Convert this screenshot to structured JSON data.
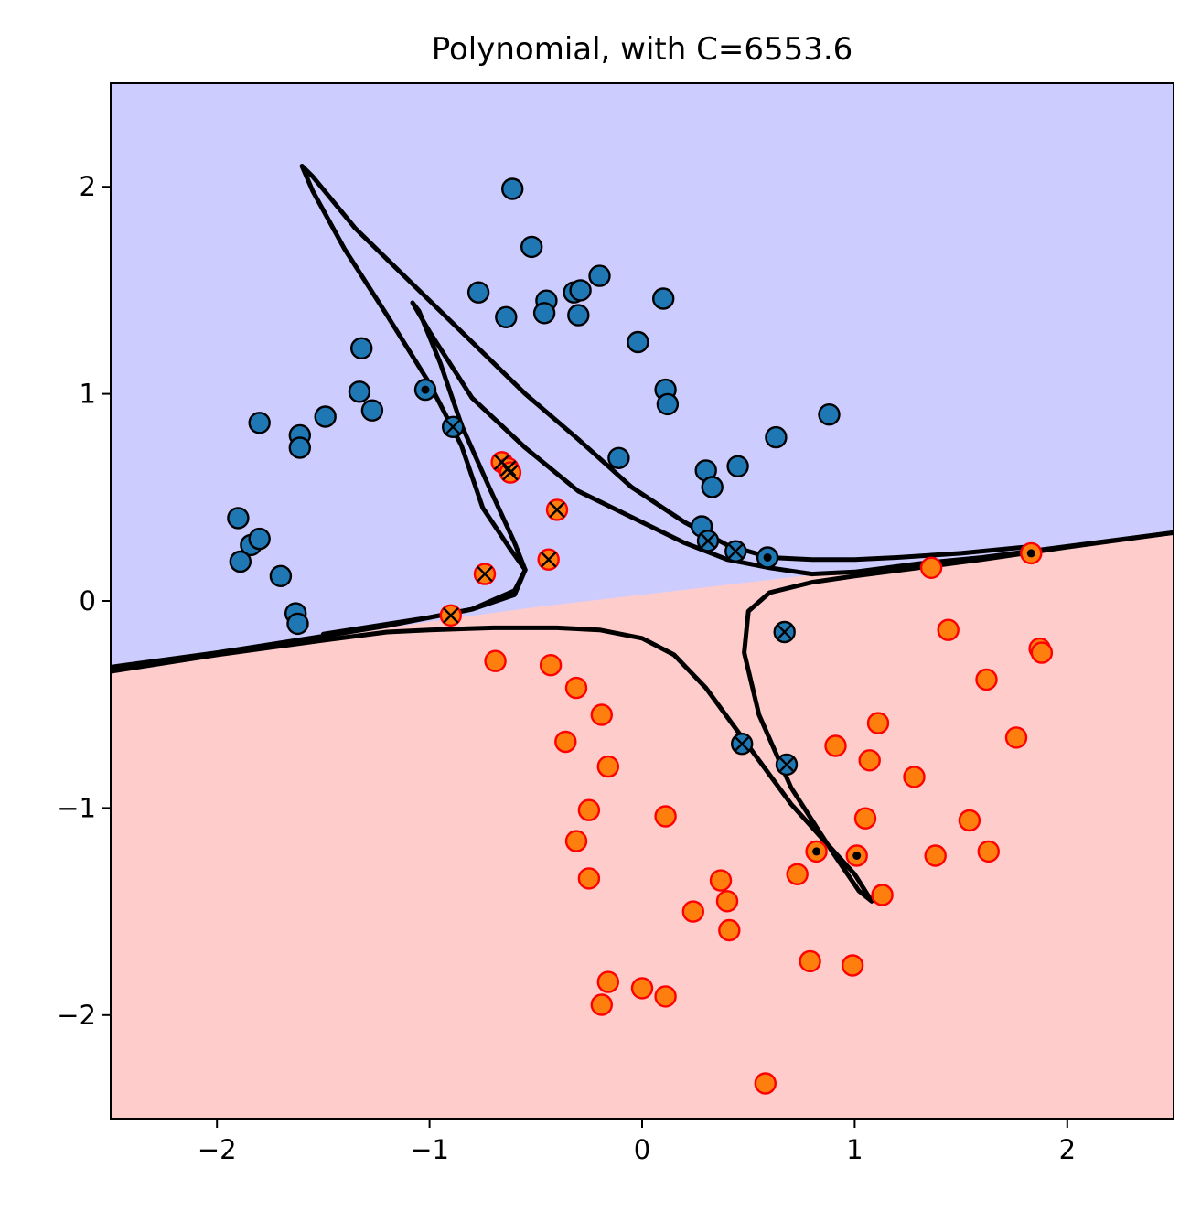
{
  "chart_data": {
    "type": "scatter",
    "title": "Polynomial, with C=6553.6",
    "xlabel": "",
    "ylabel": "",
    "xlim": [
      -2.5,
      2.5
    ],
    "ylim": [
      -2.5,
      2.5
    ],
    "x_ticks": [
      -2,
      -1,
      0,
      1,
      2
    ],
    "y_ticks": [
      -2,
      -1,
      0,
      1,
      2
    ],
    "x_tick_labels": [
      "−2",
      "−1",
      "0",
      "1",
      "2"
    ],
    "y_tick_labels": [
      "−2",
      "−1",
      "0",
      "1",
      "2"
    ],
    "grid": false,
    "legend": "none",
    "regions": [
      {
        "class": "blue",
        "color": "#ccccff"
      },
      {
        "class": "red",
        "color": "#ffcccc"
      }
    ],
    "decision_boundary": {
      "color": "#000000",
      "upper_boundary": [
        [
          -2.5,
          -0.34
        ],
        [
          -2.0,
          -0.26
        ],
        [
          -1.5,
          -0.18
        ],
        [
          -1.0,
          -0.1
        ],
        [
          -0.5,
          -0.03
        ],
        [
          0.0,
          0.03
        ],
        [
          0.5,
          0.09
        ],
        [
          1.0,
          0.15
        ],
        [
          1.5,
          0.21
        ],
        [
          2.0,
          0.27
        ],
        [
          2.5,
          0.32
        ]
      ],
      "contours": [
        [
          [
            -2.5,
            -0.32
          ],
          [
            -2.0,
            -0.25
          ],
          [
            -1.5,
            -0.17
          ],
          [
            -1.2,
            -0.12
          ],
          [
            -0.8,
            -0.04
          ],
          [
            -0.6,
            0.03
          ],
          [
            -0.55,
            0.15
          ],
          [
            -0.6,
            0.28
          ],
          [
            -0.72,
            0.55
          ],
          [
            -0.85,
            0.85
          ],
          [
            -0.95,
            1.15
          ],
          [
            -1.05,
            1.4
          ],
          [
            -1.08,
            1.44
          ],
          [
            -1.0,
            1.3
          ],
          [
            -0.8,
            0.98
          ],
          [
            -0.55,
            0.74
          ],
          [
            -0.3,
            0.53
          ],
          [
            0.0,
            0.38
          ],
          [
            0.2,
            0.28
          ],
          [
            0.4,
            0.2
          ],
          [
            0.6,
            0.16
          ],
          [
            0.8,
            0.13
          ],
          [
            1.0,
            0.14
          ],
          [
            1.3,
            0.18
          ],
          [
            1.6,
            0.21
          ],
          [
            1.9,
            0.25
          ],
          [
            2.2,
            0.29
          ],
          [
            2.5,
            0.33
          ]
        ],
        [
          [
            -2.5,
            -0.34
          ],
          [
            -2.0,
            -0.26
          ],
          [
            -1.5,
            -0.19
          ],
          [
            -1.2,
            -0.15
          ],
          [
            -1.0,
            -0.14
          ],
          [
            -0.7,
            -0.13
          ],
          [
            -0.4,
            -0.13
          ],
          [
            -0.2,
            -0.14
          ],
          [
            0.0,
            -0.18
          ],
          [
            0.15,
            -0.26
          ],
          [
            0.3,
            -0.42
          ],
          [
            0.5,
            -0.7
          ],
          [
            0.7,
            -0.98
          ],
          [
            0.85,
            -1.15
          ],
          [
            1.0,
            -1.32
          ],
          [
            1.08,
            -1.45
          ],
          [
            1.02,
            -1.4
          ],
          [
            0.9,
            -1.22
          ],
          [
            0.7,
            -0.9
          ],
          [
            0.55,
            -0.55
          ],
          [
            0.48,
            -0.25
          ],
          [
            0.5,
            -0.05
          ],
          [
            0.6,
            0.04
          ],
          [
            0.8,
            0.09
          ],
          [
            1.0,
            0.12
          ],
          [
            1.3,
            0.16
          ],
          [
            1.6,
            0.2
          ],
          [
            2.0,
            0.26
          ],
          [
            2.5,
            0.33
          ]
        ],
        [
          [
            -1.6,
            2.1
          ],
          [
            -1.55,
            2.05
          ],
          [
            -1.35,
            1.8
          ],
          [
            -1.1,
            1.55
          ],
          [
            -0.85,
            1.3
          ],
          [
            -0.55,
            1.0
          ],
          [
            -0.3,
            0.78
          ],
          [
            -0.05,
            0.55
          ],
          [
            0.2,
            0.38
          ],
          [
            0.4,
            0.27
          ],
          [
            0.6,
            0.21
          ],
          [
            0.8,
            0.2
          ],
          [
            1.0,
            0.2
          ],
          [
            1.2,
            0.21
          ],
          [
            1.5,
            0.23
          ],
          [
            1.8,
            0.26
          ]
        ],
        [
          [
            -1.6,
            2.1
          ],
          [
            -1.55,
            1.98
          ],
          [
            -1.4,
            1.7
          ],
          [
            -1.2,
            1.38
          ],
          [
            -1.0,
            1.05
          ],
          [
            -0.85,
            0.75
          ],
          [
            -0.75,
            0.45
          ],
          [
            -0.62,
            0.25
          ],
          [
            -0.55,
            0.15
          ],
          [
            -0.6,
            0.05
          ],
          [
            -0.8,
            -0.04
          ],
          [
            -1.0,
            -0.08
          ],
          [
            -1.5,
            -0.16
          ]
        ]
      ]
    },
    "series": [
      {
        "class": "blue",
        "color": "#1f77b4",
        "edge_color": "#000000",
        "points": [
          [
            -0.61,
            1.99
          ],
          [
            -0.52,
            1.71
          ],
          [
            -0.77,
            1.49
          ],
          [
            -0.64,
            1.37
          ],
          [
            -0.45,
            1.45
          ],
          [
            -0.46,
            1.39
          ],
          [
            -0.32,
            1.49
          ],
          [
            -0.3,
            1.38
          ],
          [
            -0.29,
            1.5
          ],
          [
            -0.2,
            1.57
          ],
          [
            0.1,
            1.46
          ],
          [
            -0.02,
            1.25
          ],
          [
            0.11,
            1.02
          ],
          [
            0.12,
            0.95
          ],
          [
            -0.11,
            0.69
          ],
          [
            0.3,
            0.63
          ],
          [
            0.33,
            0.55
          ],
          [
            0.45,
            0.65
          ],
          [
            0.63,
            0.79
          ],
          [
            0.88,
            0.9
          ],
          [
            -1.32,
            1.22
          ],
          [
            -1.33,
            1.01
          ],
          [
            -1.27,
            0.92
          ],
          [
            -1.49,
            0.89
          ],
          [
            -1.8,
            0.86
          ],
          [
            -1.61,
            0.8
          ],
          [
            -1.61,
            0.74
          ],
          [
            -1.9,
            0.4
          ],
          [
            -1.84,
            0.27
          ],
          [
            -1.8,
            0.3
          ],
          [
            -1.89,
            0.19
          ],
          [
            -1.7,
            0.12
          ],
          [
            -1.63,
            -0.06
          ],
          [
            -1.62,
            -0.11
          ],
          [
            0.28,
            0.36
          ]
        ]
      },
      {
        "class": "red",
        "color": "#ff7f0e",
        "edge_color": "#ff0000",
        "points": [
          [
            1.36,
            0.16
          ],
          [
            1.44,
            -0.14
          ],
          [
            1.87,
            -0.23
          ],
          [
            1.88,
            -0.25
          ],
          [
            1.62,
            -0.38
          ],
          [
            1.76,
            -0.66
          ],
          [
            1.11,
            -0.59
          ],
          [
            0.91,
            -0.7
          ],
          [
            1.07,
            -0.77
          ],
          [
            1.28,
            -0.85
          ],
          [
            1.05,
            -1.05
          ],
          [
            1.54,
            -1.06
          ],
          [
            1.38,
            -1.23
          ],
          [
            1.63,
            -1.21
          ],
          [
            0.73,
            -1.32
          ],
          [
            1.13,
            -1.42
          ],
          [
            0.37,
            -1.35
          ],
          [
            0.4,
            -1.45
          ],
          [
            0.41,
            -1.59
          ],
          [
            0.24,
            -1.5
          ],
          [
            0.79,
            -1.74
          ],
          [
            0.99,
            -1.76
          ],
          [
            0.0,
            -1.87
          ],
          [
            0.11,
            -1.91
          ],
          [
            -0.16,
            -1.84
          ],
          [
            -0.19,
            -1.95
          ],
          [
            0.58,
            -2.33
          ],
          [
            -0.69,
            -0.29
          ],
          [
            -0.43,
            -0.31
          ],
          [
            -0.31,
            -0.42
          ],
          [
            -0.19,
            -0.55
          ],
          [
            -0.36,
            -0.68
          ],
          [
            -0.16,
            -0.8
          ],
          [
            -0.25,
            -1.01
          ],
          [
            -0.31,
            -1.16
          ],
          [
            -0.25,
            -1.34
          ],
          [
            0.11,
            -1.04
          ]
        ]
      }
    ],
    "margin_support_vectors": [
      {
        "class": "blue",
        "points": [
          [
            -0.89,
            0.84
          ],
          [
            0.31,
            0.29
          ],
          [
            0.44,
            0.24
          ],
          [
            0.67,
            -0.15
          ],
          [
            0.47,
            -0.69
          ],
          [
            0.68,
            -0.79
          ]
        ]
      },
      {
        "class": "red",
        "points": [
          [
            -0.66,
            0.67
          ],
          [
            -0.63,
            0.64
          ],
          [
            -0.62,
            0.62
          ],
          [
            -0.4,
            0.44
          ],
          [
            -0.44,
            0.2
          ],
          [
            -0.74,
            0.13
          ],
          [
            -0.9,
            -0.07
          ]
        ]
      }
    ],
    "boundary_support_vectors": [
      {
        "class": "blue",
        "points": [
          [
            -1.02,
            1.02
          ],
          [
            0.59,
            0.21
          ]
        ]
      },
      {
        "class": "red",
        "points": [
          [
            1.83,
            0.23
          ],
          [
            0.82,
            -1.21
          ],
          [
            1.01,
            -1.23
          ]
        ]
      }
    ]
  }
}
